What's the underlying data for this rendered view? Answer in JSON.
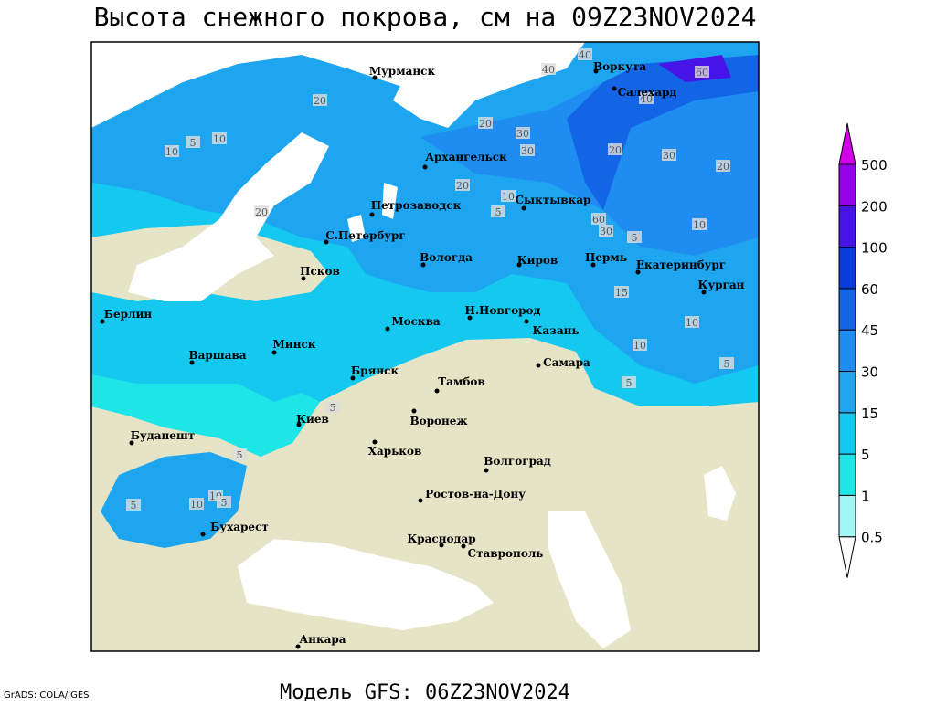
{
  "map": {
    "title": "Высота снежного покрова, см на 09Z23NOV2024",
    "footer": "Модель GFS: 06Z23NOV2024",
    "credit": "GrADS: COLA/IGES",
    "cities": [
      "Мурманск",
      "Воркута",
      "Салехард",
      "Архангельск",
      "Сыктывкар",
      "Петрозаводск",
      "С.Петербург",
      "Вологда",
      "Киров",
      "Пермь",
      "Екатеринбург",
      "Курган",
      "Псков",
      "Берлин",
      "Н.Новгород",
      "Москва",
      "Казань",
      "Минск",
      "Варшава",
      "Самара",
      "Брянск",
      "Тамбов",
      "Киев",
      "Воронеж",
      "Будапешт",
      "Харьков",
      "Волгоград",
      "Ростов-на-Дону",
      "Бухарест",
      "Краснодар",
      "Ставрополь",
      "Анкара"
    ],
    "contour_labels": [
      40,
      60,
      40,
      20,
      10,
      5,
      10,
      20,
      30,
      30,
      20,
      10,
      5,
      20,
      30,
      20,
      60,
      30,
      10,
      5,
      15,
      10,
      10,
      5,
      5,
      20,
      5,
      5,
      10,
      5,
      10,
      5,
      40
    ],
    "colorbar": {
      "levels": [
        0.5,
        1,
        5,
        15,
        30,
        45,
        60,
        100,
        200,
        500
      ],
      "colors": [
        "#ffffff",
        "#a0f5f5",
        "#1ee6e6",
        "#14c8f0",
        "#1ea5f0",
        "#1e8cf0",
        "#1464e6",
        "#0a3cdc",
        "#4614e6",
        "#9600e6",
        "#d200e6"
      ]
    }
  }
}
